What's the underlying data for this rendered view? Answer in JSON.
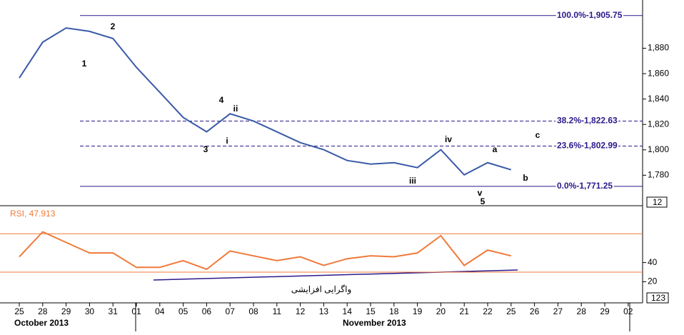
{
  "chart_data": [
    {
      "type": "line",
      "categories": [
        "25",
        "28",
        "29",
        "30",
        "31",
        "01",
        "04",
        "05",
        "06",
        "07",
        "08",
        "11",
        "12",
        "13",
        "14",
        "15",
        "18",
        "19",
        "20",
        "21",
        "22",
        "25",
        "26",
        "27",
        "28",
        "29",
        "02"
      ],
      "months": [
        "October 2013",
        "November 2013"
      ],
      "series": [
        {
          "color": "#3a5aa8",
          "values": [
            1856.6,
            1884.8,
            1896,
            1893.3,
            1887.7,
            1865,
            1845.3,
            1825.5,
            1814.2,
            1828.4,
            1822.7,
            1814.2,
            1805.7,
            1800.1,
            1791.6,
            1788.8,
            1789.9,
            1786,
            1800.1,
            1780.3,
            1789.9,
            1784.3,
            null,
            null,
            null,
            null,
            null
          ]
        }
      ],
      "ylim": [
        1756,
        1918
      ],
      "yticks": [
        {
          "value": 1780,
          "label": "1,780"
        },
        {
          "value": 1800,
          "label": "1,800"
        },
        {
          "value": 1820,
          "label": "1,820"
        },
        {
          "value": 1840,
          "label": "1,840"
        },
        {
          "value": 1860,
          "label": "1,860"
        },
        {
          "value": 1880,
          "label": "1,880"
        }
      ],
      "axis_badge": "12",
      "fib_levels": [
        {
          "text": "100.0%-1,905.75",
          "value": 1905.75,
          "style": "solid"
        },
        {
          "text": "38.2%-1,822.63",
          "value": 1822.63,
          "style": "dashed"
        },
        {
          "text": "23.6%-1,802.99",
          "value": 1802.99,
          "style": "dashed"
        },
        {
          "text": "0.0%-1,771.25",
          "value": 1771.25,
          "style": "solid"
        }
      ],
      "fib_color": "#2a1a8a",
      "wave_labels": [
        "1",
        "2",
        "3",
        "4",
        "i",
        "ii",
        "iii",
        "iv",
        "v",
        "5",
        "a",
        "b",
        "c"
      ]
    },
    {
      "type": "line",
      "title": "RSI, 47.913",
      "series": [
        {
          "color": "#f07a3a",
          "values": [
            46,
            72,
            61,
            50,
            50,
            35,
            35,
            42,
            33,
            52,
            47,
            42,
            46,
            37,
            44,
            47,
            46,
            50,
            68,
            37,
            53,
            47,
            null,
            null,
            null,
            null,
            null
          ]
        }
      ],
      "ylim": [
        1,
        94
      ],
      "yticks": [
        20,
        40
      ],
      "levels": [
        70,
        30
      ],
      "axis_badge": "123",
      "annotation": "واگرایی افزایشی"
    }
  ]
}
